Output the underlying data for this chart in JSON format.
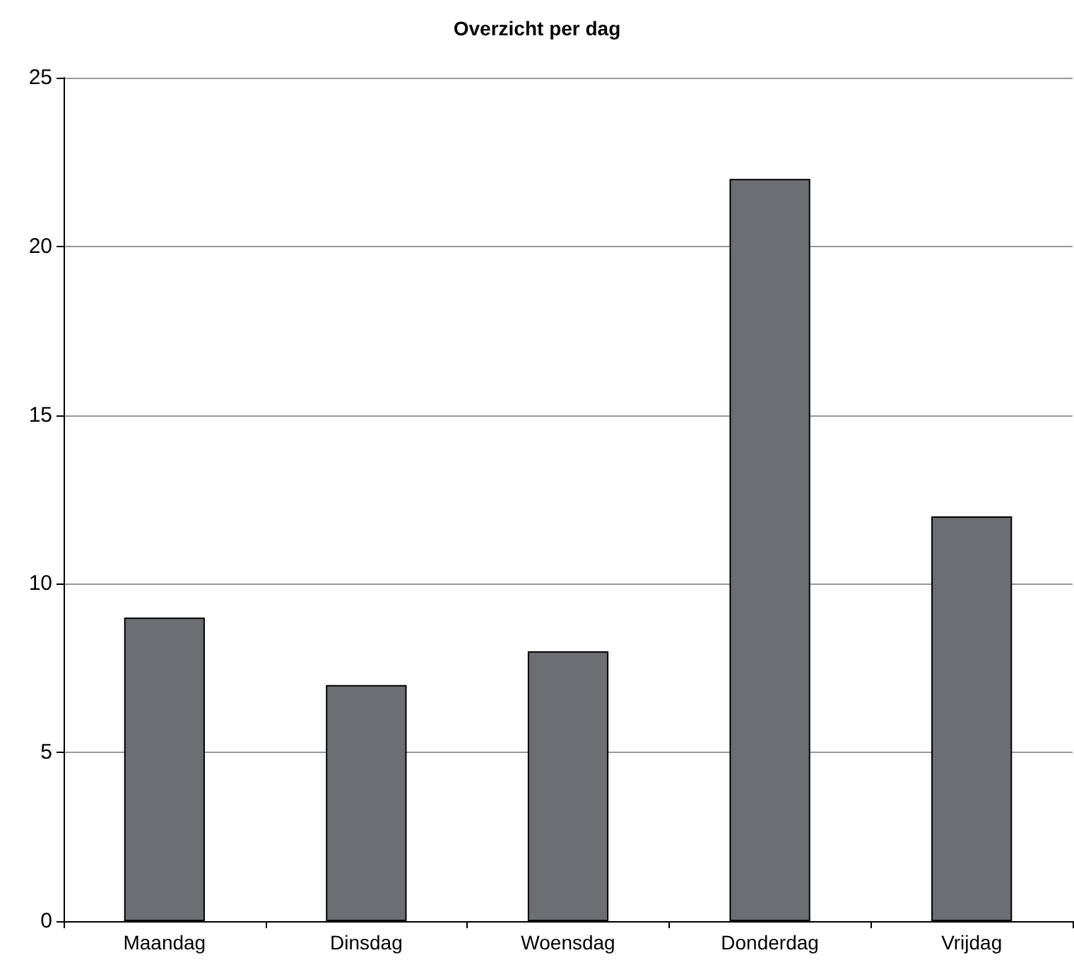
{
  "chart_data": {
    "type": "bar",
    "title": "Overzicht per dag",
    "categories": [
      "Maandag",
      "Dinsdag",
      "Woensdag",
      "Donderdag",
      "Vrijdag"
    ],
    "values": [
      9,
      7,
      8,
      22,
      12
    ],
    "color": "#6d6e71",
    "ylim": [
      0,
      25
    ],
    "yticks": [
      0,
      5,
      10,
      15,
      20,
      25
    ],
    "grid": "y"
  }
}
